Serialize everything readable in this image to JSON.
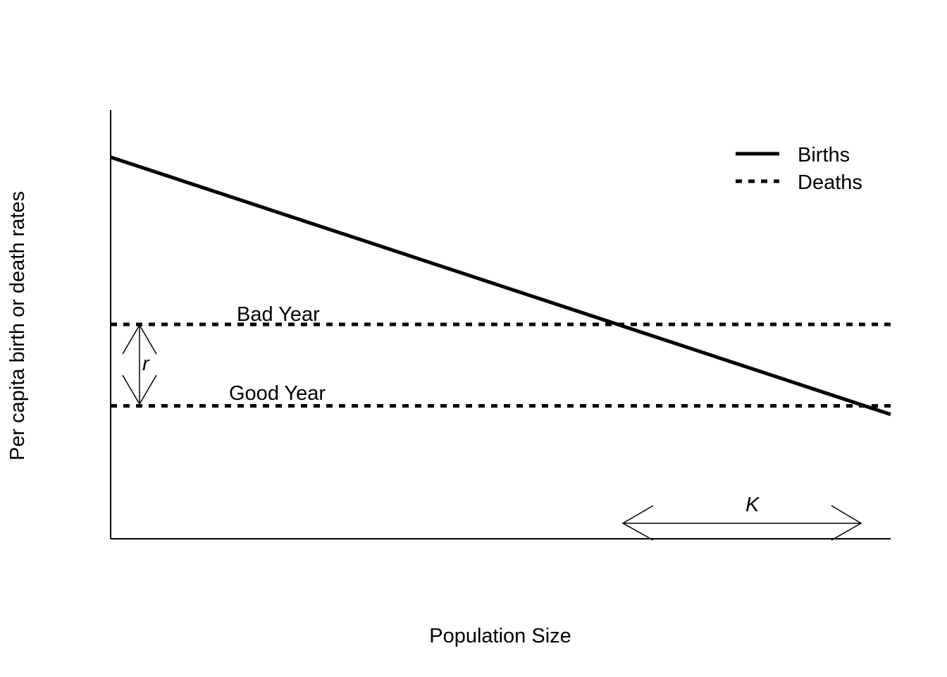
{
  "chart_data": {
    "type": "line",
    "xlabel": "Population Size",
    "ylabel": "Per capita birth or death rates",
    "xlim": [
      0,
      1
    ],
    "ylim": [
      0,
      1
    ],
    "grid": false,
    "legend_placement": "top-right",
    "series": [
      {
        "name": "Births",
        "style": "solid",
        "x": [
          0,
          1
        ],
        "y": [
          0.89,
          0.29
        ]
      },
      {
        "name": "Deaths",
        "style": "dotted",
        "label": "Bad Year",
        "x": [
          0,
          1
        ],
        "y": [
          0.5,
          0.5
        ]
      },
      {
        "name": "Deaths",
        "style": "dotted",
        "label": "Good Year",
        "x": [
          0,
          1
        ],
        "y": [
          0.31,
          0.31
        ]
      }
    ],
    "annotations": {
      "r_label": "r",
      "k_label": "K"
    }
  },
  "legend": {
    "items": [
      {
        "name": "Births",
        "style": "solid"
      },
      {
        "name": "Deaths",
        "style": "dotted"
      }
    ]
  },
  "colors": {
    "ink": "#000000",
    "background": "#ffffff"
  }
}
